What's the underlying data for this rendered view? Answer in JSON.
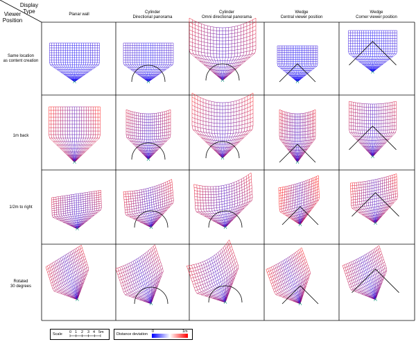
{
  "header": {
    "display_type_label": "Display\nType",
    "viewer_position_label": "Viewer\nPosition"
  },
  "columns": [
    {
      "title": "Planar wall"
    },
    {
      "title": "Cylinder\nDirectional panorama"
    },
    {
      "title": "Cylinder\nOmni directional panorama"
    },
    {
      "title": "Wedge\nCentral viewer position"
    },
    {
      "title": "Wedge\nCorner viewer position"
    }
  ],
  "rows": [
    {
      "title": "Same location\nas content creation"
    },
    {
      "title": "1m back"
    },
    {
      "title": "1/2m to right"
    },
    {
      "title": "Rotated\n30 degrees"
    }
  ],
  "legend": {
    "scale_label": "Scale",
    "scale_ticks": [
      "0",
      "1",
      "2",
      "3",
      "4",
      "5m"
    ],
    "deviation_label": "Distance deviation",
    "deviation_min": "0",
    "deviation_max": "1m",
    "color_low": "#0000ff",
    "color_high": "#ff0000"
  }
}
